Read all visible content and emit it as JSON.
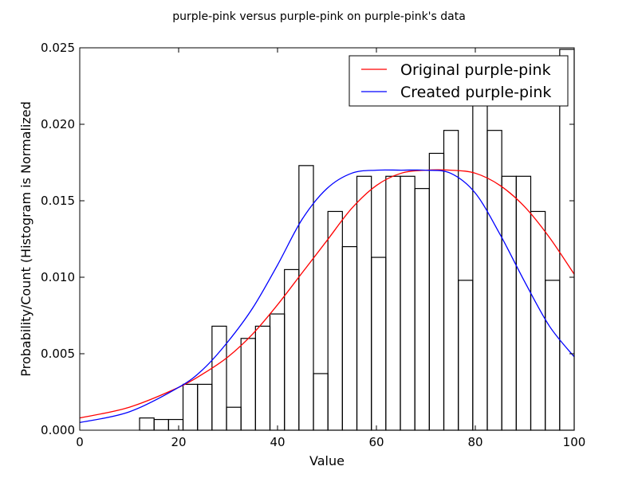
{
  "chart_data": {
    "type": "bar",
    "title": "purple-pink versus purple-pink on purple-pink's data",
    "xlabel": "Value",
    "ylabel": "Probability/Count (Histogram is Normalized",
    "xlim": [
      0,
      100
    ],
    "ylim": [
      0,
      0.025
    ],
    "x_ticks": [
      "0",
      "20",
      "40",
      "60",
      "80",
      "100"
    ],
    "y_ticks": [
      "0.000",
      "0.005",
      "0.010",
      "0.015",
      "0.020",
      "0.025"
    ],
    "grid": false,
    "legend_position": "top-right",
    "histogram": {
      "bin_start": 12.1,
      "bin_width": 2.93,
      "values": [
        0.0008,
        0.0007,
        0.0007,
        0.003,
        0.003,
        0.0068,
        0.0015,
        0.006,
        0.0068,
        0.0076,
        0.0105,
        0.0173,
        0.0037,
        0.0143,
        0.012,
        0.0166,
        0.0113,
        0.0166,
        0.0166,
        0.0158,
        0.0181,
        0.0196,
        0.0098,
        0.0226,
        0.0196,
        0.0166,
        0.0166,
        0.0143,
        0.0098,
        0.0249
      ],
      "color": "#000000"
    },
    "series": [
      {
        "name": "Original purple-pink",
        "color": "#ff0000",
        "x": [
          0,
          10,
          20,
          25,
          30,
          35,
          40,
          45,
          50,
          55,
          60,
          65,
          70,
          75,
          80,
          85,
          90,
          95,
          100
        ],
        "y": [
          0.0008,
          0.0015,
          0.0028,
          0.0037,
          0.0048,
          0.0063,
          0.0082,
          0.0103,
          0.0124,
          0.0145,
          0.016,
          0.0168,
          0.017,
          0.017,
          0.0168,
          0.016,
          0.0146,
          0.0126,
          0.0102
        ]
      },
      {
        "name": "Created purple-pink",
        "color": "#0000ff",
        "x": [
          0,
          10,
          20,
          25,
          30,
          35,
          40,
          45,
          50,
          55,
          60,
          65,
          70,
          75,
          80,
          85,
          90,
          95,
          100
        ],
        "y": [
          0.0005,
          0.0012,
          0.0028,
          0.004,
          0.0058,
          0.008,
          0.0108,
          0.0138,
          0.0158,
          0.0168,
          0.017,
          0.017,
          0.017,
          0.0168,
          0.0155,
          0.0128,
          0.0097,
          0.0068,
          0.0048
        ]
      }
    ]
  }
}
